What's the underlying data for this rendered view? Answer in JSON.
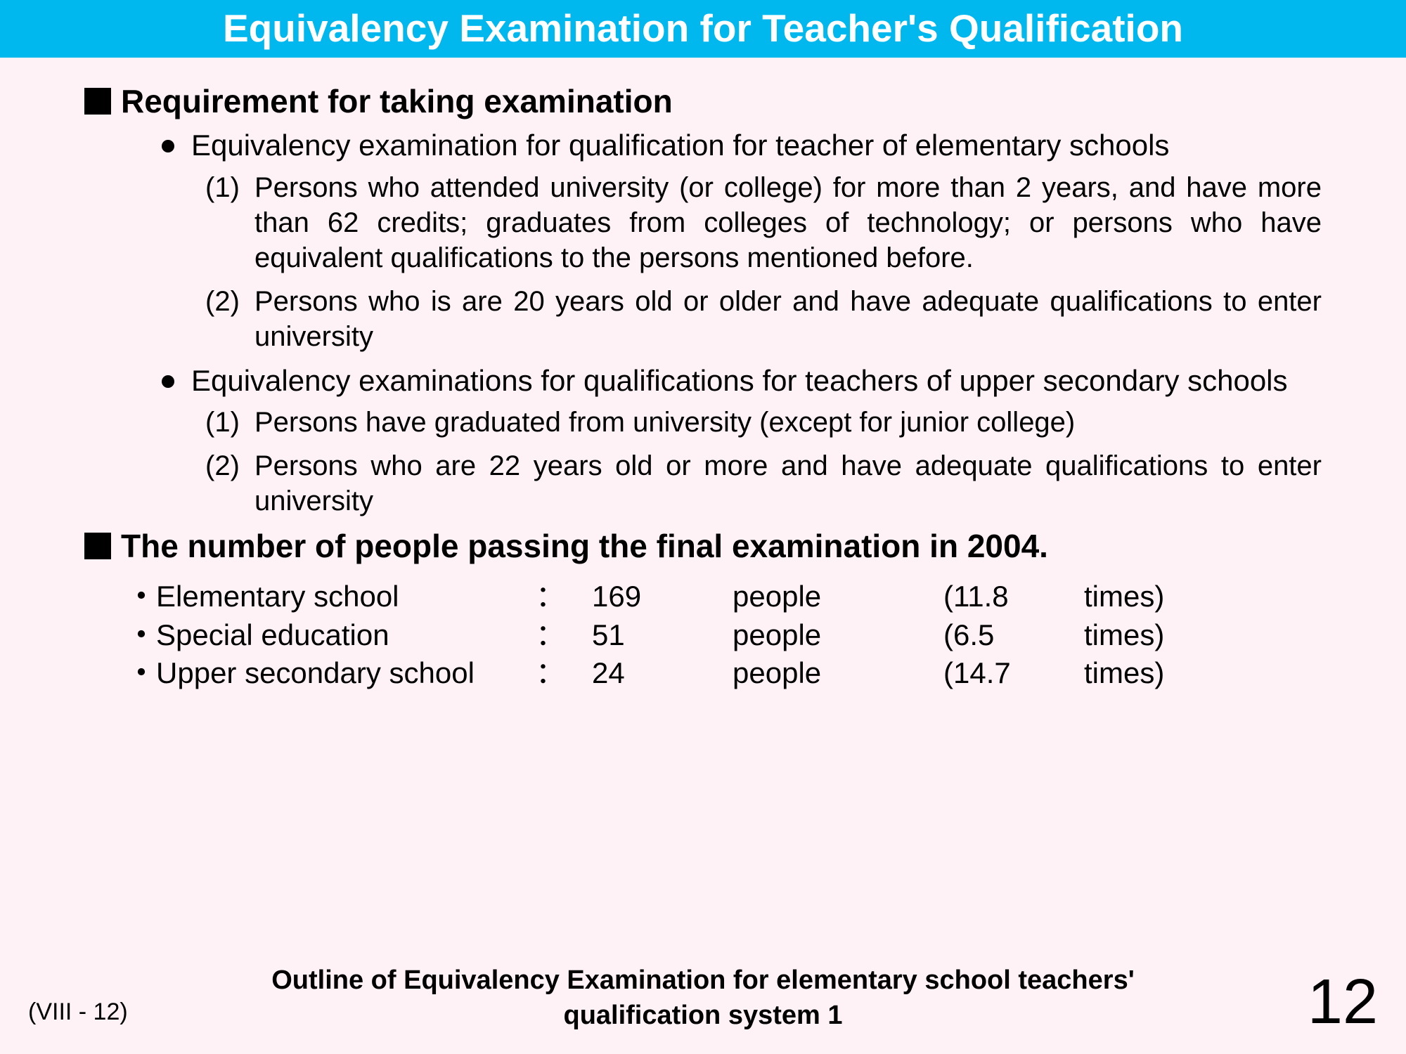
{
  "colors": {
    "title_bg": "#00b8ed",
    "title_fg": "#ffffff",
    "page_bg": "#fef2f6",
    "text": "#000000"
  },
  "title": "Equivalency Examination for Teacher's Qualification",
  "section1": {
    "heading": "Requirement for taking examination",
    "bullets": [
      {
        "text": "Equivalency examination for qualification for teacher of elementary schools",
        "items": [
          {
            "num": "(1)",
            "text": "Persons who attended university (or college) for more than 2 years, and have more than 62 credits; graduates from colleges of technology; or persons who have equivalent qualifications to the persons mentioned before."
          },
          {
            "num": "(2)",
            "text": "Persons who is are 20 years old or older and have adequate qualifications to enter university"
          }
        ]
      },
      {
        "text": "Equivalency examinations for qualifications for teachers of upper secondary schools",
        "items": [
          {
            "num": "(1)",
            "text": "Persons have graduated from university (except for junior college)"
          },
          {
            "num": "(2)",
            "text": "Persons who are 22 years old or more and have adequate qualifications to enter university"
          }
        ]
      }
    ]
  },
  "section2": {
    "heading": "The number of people passing the final examination in 2004.",
    "rows": [
      {
        "label": "Elementary school",
        "colon": "：",
        "count": "169",
        "unit": "people",
        "ratio": "(11.8",
        "times": "times)"
      },
      {
        "label": "Special education",
        "colon": "：",
        "count": "51",
        "unit": "people",
        "ratio": "(6.5",
        "times": "times)"
      },
      {
        "label": "Upper secondary school",
        "colon": "：",
        "count": "24",
        "unit": "people",
        "ratio": "(14.7",
        "times": "times)"
      }
    ]
  },
  "footer": {
    "center_line1": "Outline of Equivalency Examination for elementary school teachers'",
    "center_line2": "qualification system 1",
    "left": "(VIII - 12)",
    "page_number": "12"
  }
}
